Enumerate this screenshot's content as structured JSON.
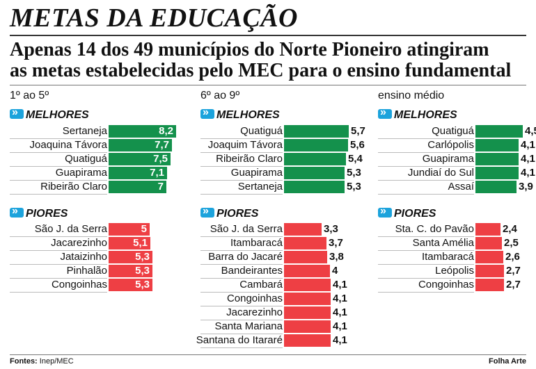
{
  "header": {
    "title": "METAS DA EDUCAÇÃO",
    "subtitle_line1": "Apenas 14 dos 49 municípios do Norte Pioneiro atingiram",
    "subtitle_line2": "as metas estabelecidas pelo MEC para o ensino fundamental"
  },
  "sections_labels": {
    "best": "MELHORES",
    "worst": "PIORES"
  },
  "colors": {
    "best": "#14914c",
    "worst": "#ee3f44",
    "icon": "#1ca3dc"
  },
  "footer": {
    "source_label": "Fontes:",
    "source_value": "Inep/MEC",
    "credit": "Folha Arte"
  },
  "chart_data": [
    {
      "type": "bar",
      "title": "1º ao 5º",
      "best": {
        "categories": [
          "Sertaneja",
          "Joaquina Távora",
          "Quatiguá",
          "Guapirama",
          "Ribeirão Claro"
        ],
        "values": [
          8.2,
          7.7,
          7.5,
          7.1,
          7
        ],
        "labels": [
          "8,2",
          "7,7",
          "7,5",
          "7,1",
          "7"
        ]
      },
      "worst": {
        "categories": [
          "São J. da Serra",
          "Jacarezinho",
          "Jataizinho",
          "Pinhalão",
          "Congoinhas"
        ],
        "values": [
          5,
          5.1,
          5.3,
          5.3,
          5.3
        ],
        "labels": [
          "5",
          "5,1",
          "5,3",
          "5,3",
          "5,3"
        ]
      }
    },
    {
      "type": "bar",
      "title": "6º ao 9º",
      "best": {
        "categories": [
          "Quatiguá",
          "Joaquim Távora",
          "Ribeirão Claro",
          "Guapirama",
          "Sertaneja"
        ],
        "values": [
          5.7,
          5.6,
          5.4,
          5.3,
          5.3
        ],
        "labels": [
          "5,7",
          "5,6",
          "5,4",
          "5,3",
          "5,3"
        ]
      },
      "worst": {
        "categories": [
          "São J. da Serra",
          "Itambaracá",
          "Barra do Jacaré",
          "Bandeirantes",
          "Cambará",
          "Congoinhas",
          "Jacarezinho",
          "Santa Mariana",
          "Santana do Itararé"
        ],
        "values": [
          3.3,
          3.7,
          3.8,
          4,
          4.1,
          4.1,
          4.1,
          4.1,
          4.1
        ],
        "labels": [
          "3,3",
          "3,7",
          "3,8",
          "4",
          "4,1",
          "4,1",
          "4,1",
          "4,1",
          "4,1"
        ]
      }
    },
    {
      "type": "bar",
      "title": "ensino médio",
      "best": {
        "categories": [
          "Quatiguá",
          "Carlópolis",
          "Guapirama",
          "Jundiaí do Sul",
          "Assaí"
        ],
        "values": [
          4.5,
          4.1,
          4.1,
          4.1,
          3.9
        ],
        "labels": [
          "4,5",
          "4,1",
          "4,1",
          "4,1",
          "3,9"
        ]
      },
      "worst": {
        "categories": [
          "Sta. C. do Pavão",
          "Santa Amélia",
          "Itambaracá",
          "Leópolis",
          "Congoinhas"
        ],
        "values": [
          2.4,
          2.5,
          2.6,
          2.7,
          2.7
        ],
        "labels": [
          "2,4",
          "2,5",
          "2,6",
          "2,7",
          "2,7"
        ]
      }
    }
  ]
}
